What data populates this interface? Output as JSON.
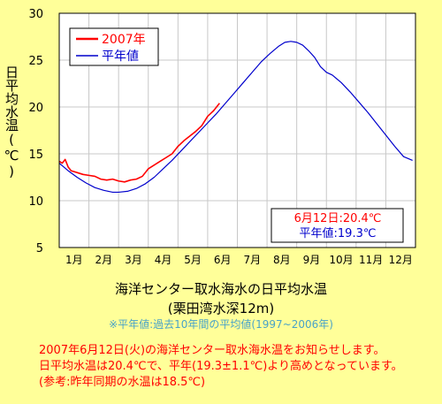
{
  "chart_data": {
    "type": "line",
    "ylabel": "日平均水温(℃)",
    "ylim": [
      5,
      30
    ],
    "yticks": [
      5,
      10,
      15,
      20,
      25,
      30
    ],
    "categories": [
      "1月",
      "2月",
      "3月",
      "4月",
      "5月",
      "6月",
      "7月",
      "8月",
      "9月",
      "10月",
      "11月",
      "12月"
    ],
    "grid": true,
    "legend_position": "top-left",
    "series": [
      {
        "name": "2007年",
        "color": "#ff0000",
        "x": [
          0.0,
          0.1,
          0.2,
          0.3,
          0.4,
          0.6,
          0.8,
          1.0,
          1.2,
          1.4,
          1.6,
          1.8,
          2.0,
          2.2,
          2.4,
          2.6,
          2.8,
          3.0,
          3.2,
          3.4,
          3.6,
          3.8,
          4.0,
          4.2,
          4.4,
          4.6,
          4.8,
          5.0,
          5.2,
          5.4
        ],
        "values": [
          14.2,
          14.0,
          14.4,
          13.6,
          13.2,
          13.0,
          12.8,
          12.7,
          12.6,
          12.3,
          12.2,
          12.3,
          12.1,
          12.0,
          12.2,
          12.3,
          12.6,
          13.4,
          13.8,
          14.2,
          14.6,
          15.0,
          15.8,
          16.4,
          16.9,
          17.4,
          18.0,
          19.0,
          19.6,
          20.4
        ]
      },
      {
        "name": "平年値",
        "color": "#0000cc",
        "x": [
          0.0,
          0.3,
          0.6,
          0.9,
          1.2,
          1.5,
          1.8,
          2.0,
          2.3,
          2.6,
          2.9,
          3.2,
          3.5,
          3.8,
          4.1,
          4.4,
          4.7,
          5.0,
          5.3,
          5.6,
          5.9,
          6.2,
          6.5,
          6.8,
          7.1,
          7.4,
          7.6,
          7.8,
          8.0,
          8.2,
          8.4,
          8.6,
          8.8,
          9.0,
          9.2,
          9.5,
          9.8,
          10.1,
          10.4,
          10.7,
          11.0,
          11.3,
          11.6,
          11.9
        ],
        "values": [
          14.0,
          13.2,
          12.5,
          11.9,
          11.4,
          11.1,
          10.9,
          10.9,
          11.0,
          11.3,
          11.8,
          12.5,
          13.4,
          14.3,
          15.3,
          16.3,
          17.3,
          18.3,
          19.3,
          20.4,
          21.5,
          22.6,
          23.7,
          24.8,
          25.7,
          26.5,
          26.9,
          27.0,
          26.9,
          26.6,
          26.0,
          25.3,
          24.3,
          23.7,
          23.4,
          22.6,
          21.6,
          20.5,
          19.4,
          18.2,
          17.0,
          15.8,
          14.7,
          14.3
        ]
      }
    ],
    "annotation_lines": [
      "6月12日:20.4℃",
      "平年値:19.3℃"
    ],
    "annotation_colors": [
      "#ff0000",
      "#0000cc"
    ]
  },
  "text": {
    "title": "海洋センター取水海水の日平均水温",
    "subtitle": "(栗田湾水深12m)",
    "note": "※平年値:過去10年間の平均値(1997~2006年)",
    "info_lines": [
      "2007年6月12日(火)の海洋センター取水海水温をお知らせします。",
      "日平均水温は20.4℃で、平年(19.3±1.1℃)より高めとなっています。",
      "(参考:昨年同期の水温は18.5℃)"
    ]
  }
}
